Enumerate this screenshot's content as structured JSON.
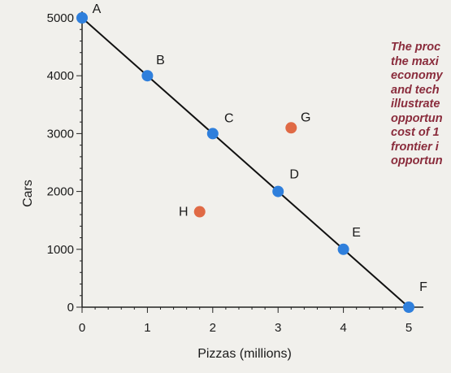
{
  "chart_data": {
    "type": "scatter",
    "xlabel": "Pizzas (millions)",
    "ylabel": "Cars",
    "xlim": [
      0,
      5
    ],
    "ylim": [
      0,
      5000
    ],
    "x_ticks": [
      "0",
      "1",
      "2",
      "3",
      "4",
      "5"
    ],
    "y_ticks": [
      "0",
      "1000",
      "2000",
      "3000",
      "4000",
      "5000"
    ],
    "frontier": {
      "points": [
        {
          "label": "A",
          "x": 0,
          "y": 5000
        },
        {
          "label": "B",
          "x": 1,
          "y": 4000
        },
        {
          "label": "C",
          "x": 2,
          "y": 3000
        },
        {
          "label": "D",
          "x": 3,
          "y": 2000
        },
        {
          "label": "E",
          "x": 4,
          "y": 1000
        },
        {
          "label": "F",
          "x": 5,
          "y": 0
        }
      ],
      "color": "#2f7fdc"
    },
    "off_points": [
      {
        "label": "G",
        "x": 3.2,
        "y": 3100
      },
      {
        "label": "H",
        "x": 1.8,
        "y": 1650
      }
    ],
    "off_color": "#e06a45",
    "grid": false
  },
  "side_text": [
    "The proc",
    "the maxi",
    "economy",
    "and tech",
    "illustrate",
    "opportun",
    "cost of 1",
    "frontier i",
    "opportun"
  ]
}
